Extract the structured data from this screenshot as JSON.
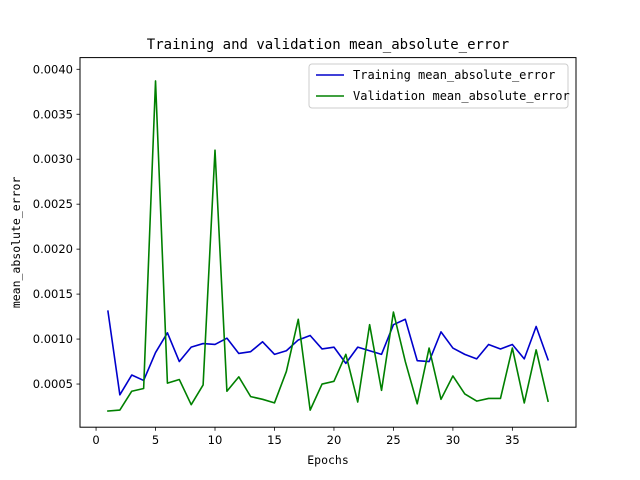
{
  "chart_data": {
    "type": "line",
    "title": "Training and validation mean_absolute_error",
    "xlabel": "Epochs",
    "ylabel": "mean_absolute_error",
    "xlim": [
      -1.35,
      40.35
    ],
    "ylim": [
      2e-05,
      0.00413
    ],
    "x_ticks": [
      0,
      5,
      10,
      15,
      20,
      25,
      30,
      35
    ],
    "x_tick_labels": [
      "0",
      "5",
      "10",
      "15",
      "20",
      "25",
      "30",
      "35"
    ],
    "y_ticks": [
      0.0005,
      0.001,
      0.0015,
      0.002,
      0.0025,
      0.003,
      0.0035,
      0.004
    ],
    "y_tick_labels": [
      "0.0005",
      "0.0010",
      "0.0015",
      "0.0020",
      "0.0025",
      "0.0030",
      "0.0035",
      "0.0040"
    ],
    "grid": false,
    "legend_position": "top-right",
    "x": [
      1,
      2,
      3,
      4,
      5,
      6,
      7,
      8,
      9,
      10,
      11,
      12,
      13,
      14,
      15,
      16,
      17,
      18,
      19,
      20,
      21,
      22,
      23,
      24,
      25,
      26,
      27,
      28,
      29,
      30,
      31,
      32,
      33,
      34,
      35,
      36,
      37,
      38
    ],
    "series": [
      {
        "name": "Training mean_absolute_error",
        "color": "#0000cc",
        "values": [
          0.00131,
          0.00038,
          0.0006,
          0.00054,
          0.00085,
          0.00107,
          0.00075,
          0.00091,
          0.00095,
          0.00094,
          0.00101,
          0.00084,
          0.00086,
          0.00097,
          0.00083,
          0.00087,
          0.00099,
          0.00104,
          0.00089,
          0.00091,
          0.00073,
          0.00091,
          0.00087,
          0.00083,
          0.00116,
          0.00122,
          0.00076,
          0.00075,
          0.00108,
          0.0009,
          0.00083,
          0.00078,
          0.00094,
          0.00089,
          0.00094,
          0.00078,
          0.00114,
          0.00077
        ]
      },
      {
        "name": "Validation mean_absolute_error",
        "color": "#008000",
        "values": [
          0.0002,
          0.00021,
          0.00042,
          0.00045,
          0.00387,
          0.00051,
          0.00055,
          0.00027,
          0.00049,
          0.0031,
          0.00042,
          0.00058,
          0.00036,
          0.00033,
          0.00029,
          0.00064,
          0.00122,
          0.00021,
          0.0005,
          0.00053,
          0.00083,
          0.0003,
          0.00116,
          0.00043,
          0.0013,
          0.00075,
          0.00028,
          0.0009,
          0.00033,
          0.00059,
          0.00039,
          0.00031,
          0.00034,
          0.00034,
          0.0009,
          0.00029,
          0.00088,
          0.00031
        ]
      }
    ]
  }
}
